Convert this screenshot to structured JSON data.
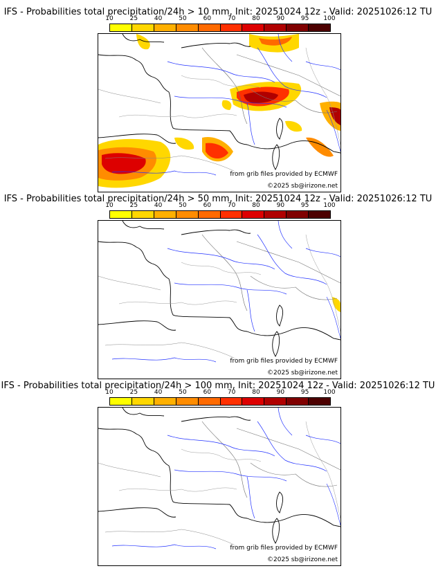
{
  "colorbar": {
    "ticks": [
      "10",
      "25",
      "40",
      "50",
      "60",
      "70",
      "80",
      "90",
      "95",
      "100"
    ],
    "colors": [
      "#ffff00",
      "#ffd700",
      "#ffb000",
      "#ff8c00",
      "#ff6a00",
      "#ff3000",
      "#dd0000",
      "#b00000",
      "#800000",
      "#4d0000"
    ]
  },
  "panels": [
    {
      "title": "IFS - Probabilities total precipitation/24h > 10 mm, Init: 20251024 12z - Valid: 20251026:12 TU",
      "source_credit": "from grib files provided by ECMWF",
      "copyright": "©2025 sb@irizone.net"
    },
    {
      "title": "IFS - Probabilities total precipitation/24h > 50 mm, Init: 20251024 12z - Valid: 20251026:12 TU",
      "source_credit": "from grib files provided by ECMWF",
      "copyright": "©2025 sb@irizone.net"
    },
    {
      "title": "IFS - Probabilities total precipitation/24h > 100 mm, Init: 20251024 12z - Valid: 20251026:12 TU",
      "source_credit": "from grib files provided by ECMWF",
      "copyright": "©2025 sb@irizone.net"
    }
  ]
}
